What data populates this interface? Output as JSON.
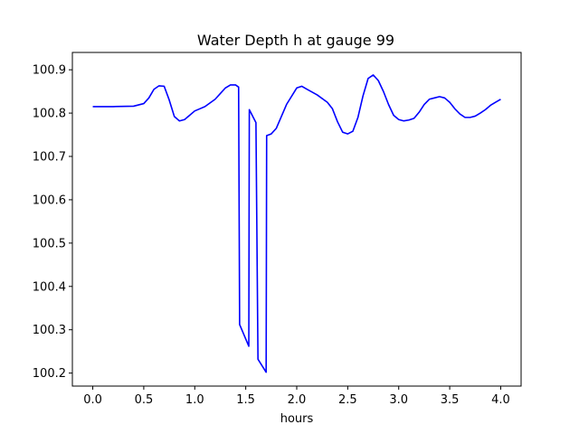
{
  "chart_data": {
    "type": "line",
    "title": "Water Depth h at gauge 99",
    "xlabel": "hours",
    "ylabel": "",
    "xlim": [
      -0.2,
      4.2
    ],
    "ylim": [
      100.17,
      100.94
    ],
    "xticks": [
      0.0,
      0.5,
      1.0,
      1.5,
      2.0,
      2.5,
      3.0,
      3.5,
      4.0
    ],
    "xtick_labels": [
      "0.0",
      "0.5",
      "1.0",
      "1.5",
      "2.0",
      "2.5",
      "3.0",
      "3.5",
      "4.0"
    ],
    "yticks": [
      100.2,
      100.3,
      100.4,
      100.5,
      100.6,
      100.7,
      100.8,
      100.9
    ],
    "ytick_labels": [
      "100.2",
      "100.3",
      "100.4",
      "100.5",
      "100.6",
      "100.7",
      "100.8",
      "100.9"
    ],
    "grid": false,
    "legend": "none",
    "series": [
      {
        "color": "#0000ff",
        "x": [
          0.0,
          0.2,
          0.4,
          0.5,
          0.55,
          0.6,
          0.65,
          0.7,
          0.75,
          0.8,
          0.85,
          0.9,
          0.95,
          1.0,
          1.05,
          1.1,
          1.2,
          1.3,
          1.35,
          1.4,
          1.43,
          1.44,
          1.53,
          1.535,
          1.6,
          1.62,
          1.7,
          1.705,
          1.75,
          1.8,
          1.9,
          2.0,
          2.05,
          2.1,
          2.2,
          2.3,
          2.35,
          2.4,
          2.45,
          2.5,
          2.55,
          2.6,
          2.65,
          2.7,
          2.75,
          2.8,
          2.85,
          2.9,
          2.95,
          3.0,
          3.05,
          3.1,
          3.15,
          3.2,
          3.25,
          3.3,
          3.35,
          3.4,
          3.45,
          3.5,
          3.55,
          3.6,
          3.65,
          3.7,
          3.75,
          3.8,
          3.85,
          3.9,
          3.95,
          4.0
        ],
        "values": [
          100.815,
          100.815,
          100.816,
          100.822,
          100.835,
          100.855,
          100.863,
          100.862,
          100.83,
          100.792,
          100.782,
          100.785,
          100.795,
          100.805,
          100.81,
          100.815,
          100.832,
          100.858,
          100.865,
          100.865,
          100.86,
          100.312,
          100.262,
          100.808,
          100.778,
          100.232,
          100.202,
          100.748,
          100.752,
          100.765,
          100.82,
          100.858,
          100.862,
          100.855,
          100.842,
          100.825,
          100.81,
          100.78,
          100.756,
          100.752,
          100.758,
          100.79,
          100.84,
          100.88,
          100.888,
          100.875,
          100.85,
          100.82,
          100.795,
          100.785,
          100.782,
          100.784,
          100.788,
          100.802,
          100.82,
          100.832,
          100.835,
          100.838,
          100.835,
          100.825,
          100.81,
          100.798,
          100.79,
          100.79,
          100.793,
          100.8,
          100.808,
          100.818,
          100.825,
          100.832
        ]
      }
    ]
  }
}
